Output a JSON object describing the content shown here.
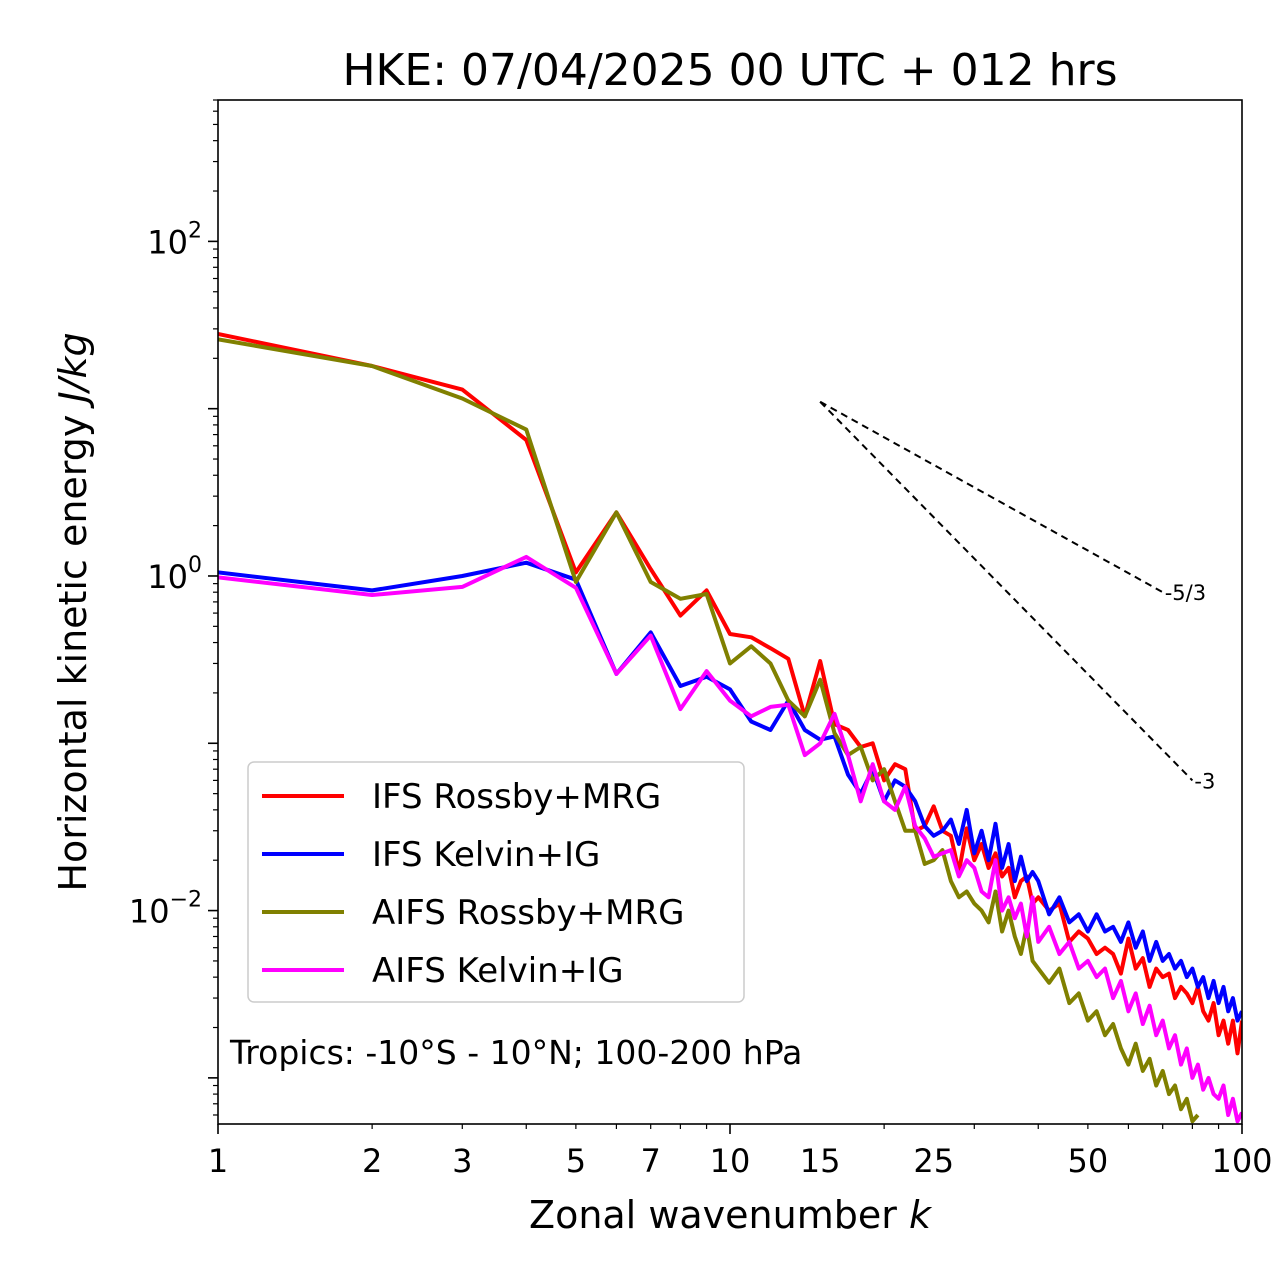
{
  "chart_data": {
    "type": "line",
    "title": "HKE: 07/04/2025 00 UTC + 012 hrs",
    "xlabel": "Zonal wavenumber",
    "xlabel_var": "k",
    "ylabel": "Horizontal kinetic energy",
    "ylabel_unit": "J/kg",
    "x_scale": "log",
    "y_scale": "log",
    "xlim": [
      1,
      100
    ],
    "ylim": [
      0.00053,
      700
    ],
    "x_tick_values": [
      1,
      2,
      3,
      5,
      7,
      10,
      15,
      25,
      50,
      100
    ],
    "x_tick_labels": [
      "1",
      "2",
      "3",
      "5",
      "7",
      "10",
      "15",
      "25",
      "50",
      "100"
    ],
    "y_ticks": [
      {
        "value": 100,
        "base": "10",
        "exp": "2"
      },
      {
        "value": 1,
        "base": "10",
        "exp": "0"
      },
      {
        "value": 0.01,
        "base": "10",
        "exp": "−2"
      }
    ],
    "annotation": "Tropics: -10°S - 10°N; 100-200 hPa",
    "legend_position": "lower-left",
    "reference_lines": [
      {
        "label": "-5/3",
        "x0": 15,
        "y0": 11,
        "x1": 70,
        "y1": 0.8
      },
      {
        "label": "-3",
        "x0": 15,
        "y0": 11,
        "x1": 80,
        "y1": 0.06
      }
    ],
    "series": [
      {
        "name": "IFS Rossby+MRG",
        "color": "#ff0000",
        "x": [
          1,
          2,
          3,
          4,
          5,
          6,
          7,
          8,
          9,
          10,
          11,
          12,
          13,
          14,
          15,
          16,
          17,
          18,
          19,
          20,
          21,
          22,
          23,
          24,
          25,
          26,
          27,
          28,
          29,
          30,
          31,
          32,
          33,
          34,
          35,
          36,
          37,
          38,
          39,
          40,
          42,
          44,
          46,
          48,
          50,
          52,
          54,
          56,
          58,
          60,
          62,
          64,
          66,
          68,
          70,
          72,
          74,
          76,
          78,
          80,
          82,
          84,
          86,
          88,
          90,
          92,
          94,
          96,
          98,
          100
        ],
        "y": [
          28,
          18,
          13,
          6.5,
          1.05,
          2.4,
          1.1,
          0.58,
          0.82,
          0.45,
          0.43,
          0.37,
          0.32,
          0.145,
          0.31,
          0.13,
          0.12,
          0.095,
          0.1,
          0.06,
          0.075,
          0.07,
          0.03,
          0.032,
          0.042,
          0.03,
          0.028,
          0.017,
          0.031,
          0.02,
          0.025,
          0.018,
          0.022,
          0.016,
          0.018,
          0.012,
          0.015,
          0.016,
          0.011,
          0.012,
          0.01,
          0.011,
          0.0065,
          0.0075,
          0.0068,
          0.0055,
          0.006,
          0.0055,
          0.0042,
          0.0068,
          0.0045,
          0.0052,
          0.0035,
          0.0045,
          0.004,
          0.0042,
          0.003,
          0.0035,
          0.0032,
          0.0028,
          0.0035,
          0.0025,
          0.0022,
          0.0028,
          0.0018,
          0.0022,
          0.0016,
          0.0022,
          0.0014,
          0.0022
        ]
      },
      {
        "name": "IFS Kelvin+IG",
        "color": "#0000ff",
        "x": [
          1,
          2,
          3,
          4,
          5,
          6,
          7,
          8,
          9,
          10,
          11,
          12,
          13,
          14,
          15,
          16,
          17,
          18,
          19,
          20,
          21,
          22,
          23,
          24,
          25,
          26,
          27,
          28,
          29,
          30,
          31,
          32,
          33,
          34,
          35,
          36,
          37,
          38,
          39,
          40,
          42,
          44,
          46,
          48,
          50,
          52,
          54,
          56,
          58,
          60,
          62,
          64,
          66,
          68,
          70,
          72,
          74,
          76,
          78,
          80,
          82,
          84,
          86,
          88,
          90,
          92,
          94,
          96,
          98,
          100
        ],
        "y": [
          1.05,
          0.82,
          1.0,
          1.2,
          0.95,
          0.26,
          0.46,
          0.22,
          0.25,
          0.21,
          0.135,
          0.12,
          0.18,
          0.12,
          0.105,
          0.11,
          0.065,
          0.05,
          0.07,
          0.045,
          0.06,
          0.055,
          0.045,
          0.032,
          0.028,
          0.03,
          0.035,
          0.025,
          0.04,
          0.022,
          0.03,
          0.02,
          0.033,
          0.018,
          0.025,
          0.015,
          0.021,
          0.015,
          0.017,
          0.015,
          0.0095,
          0.012,
          0.0085,
          0.0095,
          0.0075,
          0.0095,
          0.0075,
          0.008,
          0.0065,
          0.0085,
          0.006,
          0.0075,
          0.005,
          0.0065,
          0.005,
          0.0055,
          0.0045,
          0.005,
          0.004,
          0.0045,
          0.0035,
          0.004,
          0.003,
          0.0038,
          0.0028,
          0.0035,
          0.0025,
          0.003,
          0.0022,
          0.0025
        ]
      },
      {
        "name": "AIFS Rossby+MRG",
        "color": "#808000",
        "x": [
          1,
          2,
          3,
          4,
          5,
          6,
          7,
          8,
          9,
          10,
          11,
          12,
          13,
          14,
          15,
          16,
          17,
          18,
          19,
          20,
          21,
          22,
          23,
          24,
          25,
          26,
          27,
          28,
          29,
          30,
          31,
          32,
          33,
          34,
          35,
          36,
          37,
          38,
          39,
          40,
          42,
          44,
          46,
          48,
          50,
          52,
          54,
          56,
          58,
          60,
          62,
          64,
          66,
          68,
          70,
          72,
          74,
          76,
          78,
          80,
          82
        ],
        "y": [
          26,
          18,
          11.5,
          7.5,
          0.92,
          2.4,
          0.92,
          0.73,
          0.78,
          0.3,
          0.38,
          0.3,
          0.18,
          0.145,
          0.24,
          0.115,
          0.085,
          0.095,
          0.06,
          0.07,
          0.045,
          0.03,
          0.03,
          0.019,
          0.02,
          0.023,
          0.015,
          0.012,
          0.013,
          0.011,
          0.01,
          0.0085,
          0.013,
          0.0075,
          0.01,
          0.007,
          0.0055,
          0.008,
          0.005,
          0.0045,
          0.0037,
          0.0045,
          0.0028,
          0.0032,
          0.0022,
          0.0025,
          0.0018,
          0.0021,
          0.0015,
          0.0012,
          0.0016,
          0.0011,
          0.0013,
          0.0009,
          0.0011,
          0.0008,
          0.0009,
          0.00065,
          0.00075,
          0.00055,
          0.0006
        ]
      },
      {
        "name": "AIFS Kelvin+IG",
        "color": "#ff00ff",
        "x": [
          1,
          2,
          3,
          4,
          5,
          6,
          7,
          8,
          9,
          10,
          11,
          12,
          13,
          14,
          15,
          16,
          17,
          18,
          19,
          20,
          21,
          22,
          23,
          24,
          25,
          26,
          27,
          28,
          29,
          30,
          31,
          32,
          33,
          34,
          35,
          36,
          37,
          38,
          39,
          40,
          42,
          44,
          46,
          48,
          50,
          52,
          54,
          56,
          58,
          60,
          62,
          64,
          66,
          68,
          70,
          72,
          74,
          76,
          78,
          80,
          82,
          84,
          86,
          88,
          90,
          92,
          94,
          96,
          98,
          100
        ],
        "y": [
          0.98,
          0.77,
          0.86,
          1.3,
          0.85,
          0.26,
          0.44,
          0.16,
          0.27,
          0.18,
          0.145,
          0.165,
          0.17,
          0.085,
          0.1,
          0.15,
          0.085,
          0.045,
          0.075,
          0.045,
          0.04,
          0.055,
          0.032,
          0.027,
          0.021,
          0.022,
          0.023,
          0.016,
          0.02,
          0.018,
          0.013,
          0.012,
          0.02,
          0.01,
          0.012,
          0.009,
          0.011,
          0.007,
          0.012,
          0.0065,
          0.008,
          0.0055,
          0.0065,
          0.0045,
          0.005,
          0.004,
          0.0045,
          0.003,
          0.0038,
          0.0025,
          0.0032,
          0.0021,
          0.0027,
          0.0018,
          0.0022,
          0.0015,
          0.0018,
          0.0012,
          0.0015,
          0.001,
          0.0012,
          0.00085,
          0.001,
          0.0008,
          0.00075,
          0.0009,
          0.0006,
          0.00075,
          0.00055,
          0.00062
        ]
      }
    ]
  }
}
